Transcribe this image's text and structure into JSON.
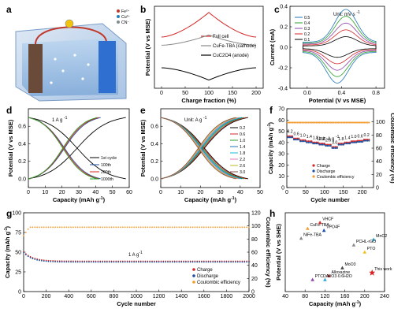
{
  "colors": {
    "fullcell": "#d62728",
    "cathode": "#888888",
    "anode": "#000000",
    "orange": "#f39c33",
    "blue": "#1f4e9c",
    "red": "#d62728",
    "purple": "#8e44ad"
  },
  "panels": {
    "a": {
      "label": "a"
    },
    "b": {
      "label": "b"
    },
    "c": {
      "label": "c"
    },
    "d": {
      "label": "d"
    },
    "e": {
      "label": "e"
    },
    "f": {
      "label": "f"
    },
    "g": {
      "label": "g"
    },
    "h": {
      "label": "h"
    }
  },
  "chart_data": [
    {
      "id": "b",
      "type": "line",
      "xlabel": "Charge fraction (%)",
      "ylabel": "Potential (V vs MSE)",
      "xlim": [
        -15,
        215
      ],
      "xticks": [
        "0",
        "50",
        "100",
        "150",
        "200"
      ],
      "series": [
        {
          "name": "Full cell",
          "x": [
            0,
            50,
            100,
            150,
            200
          ],
          "y": [
            0.45,
            0.7,
            1.05,
            0.7,
            0.45
          ]
        },
        {
          "name": "CuFe-TBA (cathode)",
          "x": [
            0,
            50,
            100,
            150,
            200
          ],
          "y": [
            0.25,
            0.35,
            0.5,
            0.35,
            0.25
          ]
        },
        {
          "name": "CuC2O4 (anode)",
          "x": [
            0,
            50,
            100,
            150,
            200
          ],
          "y": [
            -0.3,
            -0.45,
            -0.6,
            -0.45,
            -0.3
          ]
        }
      ]
    },
    {
      "id": "c",
      "type": "line",
      "xlabel": "Potential (V vs MSE)",
      "ylabel": "Current (mA)",
      "xlim": [
        -0.2,
        0.9
      ],
      "ylim": [
        -0.4,
        0.4
      ],
      "xticks": [
        "0.0",
        "0.4",
        "0.8"
      ],
      "yticks": [
        "-0.4",
        "-0.2",
        "0.0",
        "0.2",
        "0.4"
      ],
      "annotation": "Unit: mV s",
      "annotation_sup": "-1",
      "legend": [
        "0.5",
        "0.4",
        "0.3",
        "0.2",
        "0.1"
      ],
      "series_scale": [
        1.0,
        0.82,
        0.64,
        0.46,
        0.28
      ]
    },
    {
      "id": "d",
      "type": "line",
      "xlabel": "Capacity (mAh g",
      "xlabel_sup": "-1",
      "ylabel": "Potential (V vs MSE)",
      "xlim": [
        0,
        60
      ],
      "ylim": [
        -0.1,
        0.8
      ],
      "xticks": [
        "0",
        "10",
        "20",
        "30",
        "40",
        "50",
        "60"
      ],
      "yticks": [
        "0.0",
        "0.2",
        "0.4",
        "0.6"
      ],
      "annotation": "1 A g",
      "annotation_sup": "-1",
      "series": [
        {
          "name": "1st cycle",
          "capacity": 58
        },
        {
          "name": "100th",
          "capacity": 43
        },
        {
          "name": "200th",
          "capacity": 42
        },
        {
          "name": "1000th",
          "capacity": 41
        }
      ]
    },
    {
      "id": "e",
      "type": "line",
      "xlabel": "Capacity (mAh g",
      "xlabel_sup": "-1",
      "ylabel": "Potential (V vs MSE)",
      "xlim": [
        0,
        50
      ],
      "ylim": [
        -0.1,
        0.8
      ],
      "xticks": [
        "0",
        "10",
        "20",
        "30",
        "40",
        "50"
      ],
      "yticks": [
        "0.0",
        "0.2",
        "0.4",
        "0.6"
      ],
      "annotation": "Unit: A g",
      "annotation_sup": "-1",
      "series": [
        {
          "name": "0.2",
          "capacity": 44
        },
        {
          "name": "0.6",
          "capacity": 43
        },
        {
          "name": "1.0",
          "capacity": 42
        },
        {
          "name": "1.4",
          "capacity": 41
        },
        {
          "name": "1.8",
          "capacity": 40.2
        },
        {
          "name": "2.2",
          "capacity": 39.4
        },
        {
          "name": "2.6",
          "capacity": 38.6
        },
        {
          "name": "3.0",
          "capacity": 37.8
        }
      ]
    },
    {
      "id": "f",
      "type": "scatter",
      "xlabel": "Cycle number",
      "ylabel": "Capacity (mAh g",
      "ylabel_sup": "-1",
      "ylabel2": "Coulombic efficiency (%)",
      "xlim": [
        0,
        230
      ],
      "ylim": [
        0,
        70
      ],
      "ylim2": [
        0,
        120
      ],
      "xticks": [
        "0",
        "50",
        "100",
        "150",
        "200"
      ],
      "yticks": [
        "0",
        "10",
        "20",
        "30",
        "40",
        "50",
        "60",
        "70"
      ],
      "yticks2": [
        "0",
        "20",
        "40",
        "60",
        "80",
        "100"
      ],
      "annotation": "Unit: A g",
      "annotation_sup": "-1",
      "rates": [
        "0.2",
        "0.6",
        "1.0",
        "1.4",
        "1.8",
        "2.2",
        "2.6",
        "3.0",
        "1.8",
        "1.4",
        "1.0",
        "0.6",
        "0.2"
      ],
      "rate_capacity": [
        45,
        43,
        41.5,
        40.5,
        39.5,
        38.5,
        37.5,
        35.5,
        38.5,
        39.5,
        40.5,
        41,
        42
      ],
      "ce": 99,
      "legend": [
        "Charge",
        "Discharge",
        "Coulombic efficiency"
      ]
    },
    {
      "id": "g",
      "type": "scatter",
      "xlabel": "Cycle number",
      "ylabel": "Capacity (mAh g",
      "ylabel_sup": "-1",
      "ylabel2": "Coulombic efficiency (%)",
      "xlim": [
        0,
        2000
      ],
      "ylim": [
        0,
        100
      ],
      "ylim2": [
        0,
        120
      ],
      "xticks": [
        "0",
        "200",
        "400",
        "600",
        "800",
        "1000",
        "1200",
        "1400",
        "1600",
        "1800",
        "2000"
      ],
      "yticks": [
        "0",
        "25",
        "50",
        "75",
        "100"
      ],
      "yticks2": [
        "0",
        "20",
        "40",
        "60",
        "80",
        "100",
        "120"
      ],
      "annotation": "1 A g",
      "annotation_sup": "-1",
      "capacity_start": 50,
      "capacity_end": 38,
      "ce": 98,
      "legend": [
        "Charge",
        "Discharge",
        "Coulombic efficiency"
      ]
    },
    {
      "id": "h",
      "type": "scatter",
      "xlabel": "Capacity (mAh g",
      "xlabel_sup": "-1",
      "ylabel": "Potential (V vs SHE)",
      "xlim": [
        40,
        240
      ],
      "ylim": [
        -0.6,
        1.4
      ],
      "xticks": [
        "40",
        "80",
        "120",
        "160",
        "200",
        "240"
      ],
      "points": [
        {
          "label": "CuFe-TBA",
          "x": 85,
          "y": 1.0,
          "color": "#f39c33"
        },
        {
          "label": "NiFe-TBA",
          "x": 72,
          "y": 0.75,
          "color": "#888888"
        },
        {
          "label": "VHCF",
          "x": 110,
          "y": 1.15,
          "color": "#d62728"
        },
        {
          "label": "VPO4F",
          "x": 118,
          "y": 0.95,
          "color": "#1f4e9c"
        },
        {
          "label": "MnO2",
          "x": 218,
          "y": 0.72,
          "color": "#2aa7d6"
        },
        {
          "label": "PCHL-rGO",
          "x": 178,
          "y": 0.58,
          "color": "#888888"
        },
        {
          "label": "PTO",
          "x": 200,
          "y": 0.4,
          "color": "#f0c020"
        },
        {
          "label": "MoO3",
          "x": 155,
          "y": 0.0,
          "color": "#444444"
        },
        {
          "label": "Alloxazine",
          "x": 128,
          "y": -0.2,
          "color": "#d62728"
        },
        {
          "label": "PTCDA",
          "x": 95,
          "y": -0.3,
          "color": "#8e44ad"
        },
        {
          "label": "WO3·0.6H2O",
          "x": 120,
          "y": -0.3,
          "color": "#2aa7d6"
        },
        {
          "label": "This work",
          "x": 215,
          "y": -0.12,
          "color": "#d62728"
        }
      ]
    }
  ],
  "schematic": {
    "legend_items": [
      "Fe²⁺",
      "Cu²⁺",
      "CN⁻"
    ]
  }
}
